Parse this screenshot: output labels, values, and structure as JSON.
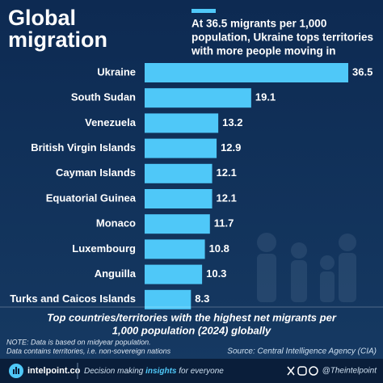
{
  "chart_data": {
    "type": "bar",
    "orientation": "horizontal",
    "title": [
      "Global",
      "migration"
    ],
    "annotation": [
      "At 36.5 migrants per 1,000",
      "population, Ukraine tops territories",
      "with more people moving in"
    ],
    "categories": [
      "Ukraine",
      "South Sudan",
      "Venezuela",
      "British Virgin Islands",
      "Cayman Islands",
      "Equatorial Guinea",
      "Monaco",
      "Luxembourg",
      "Anguilla",
      "Turks and Caicos Islands"
    ],
    "values": [
      36.5,
      19.1,
      13.2,
      12.9,
      12.1,
      12.1,
      11.7,
      10.8,
      10.3,
      8.3
    ],
    "color": "#4fc8f8",
    "caption": [
      "Top countries/territories with the highest net migrants per",
      "1,000 population (2024) globally"
    ],
    "notes": [
      "NOTE: Data is based on midyear population.",
      "Data contains territories, i.e. non-sovereign nations"
    ],
    "source": "Source: Central Intelligence Agency (CIA)"
  },
  "footer": {
    "site": "intelpoint.co",
    "tagline": [
      "Decision making ",
      "insights",
      " for everyone"
    ],
    "handle": "@Theintelpoint"
  }
}
